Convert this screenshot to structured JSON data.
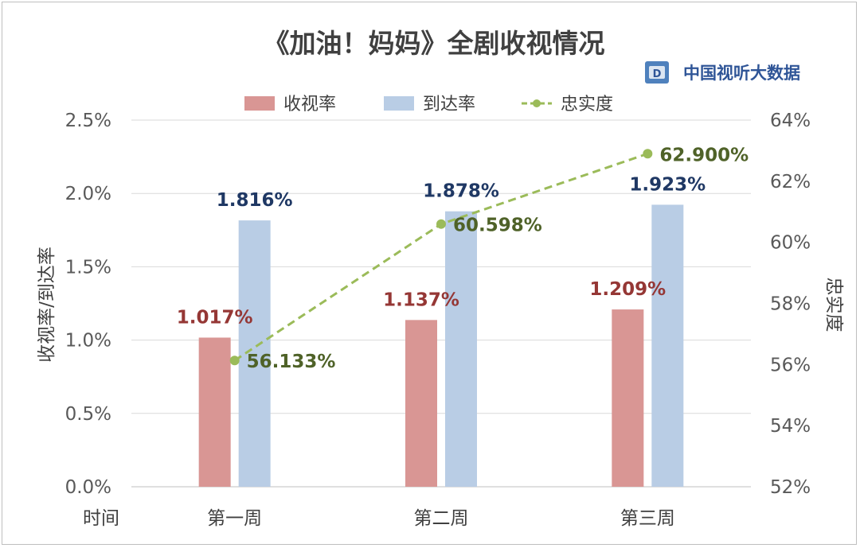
{
  "chart_data": {
    "type": "bar",
    "title": "《加油！妈妈》全剧收视情况",
    "brand": "中国视听大数据",
    "categories": [
      "第一周",
      "第二周",
      "第三周"
    ],
    "x_axis_label": "时间",
    "y_left_label": "收视率/到达率",
    "y_right_label": "忠实度",
    "y_left_ticks": [
      "0.0%",
      "0.5%",
      "1.0%",
      "1.5%",
      "2.0%",
      "2.5%"
    ],
    "y_right_ticks": [
      "52%",
      "54%",
      "56%",
      "58%",
      "60%",
      "62%",
      "64%"
    ],
    "y_left_range": [
      0,
      2.5
    ],
    "y_right_range": [
      52,
      64
    ],
    "legend_position": "top",
    "grid": true,
    "series": [
      {
        "name": "收视率",
        "type": "bar",
        "axis": "left",
        "color": "#d99694",
        "values": [
          1.017,
          1.137,
          1.209
        ],
        "labels": [
          "1.017%",
          "1.137%",
          "1.209%"
        ],
        "label_color": "#953735"
      },
      {
        "name": "到达率",
        "type": "bar",
        "axis": "left",
        "color": "#b9cde5",
        "values": [
          1.816,
          1.878,
          1.923
        ],
        "labels": [
          "1.816%",
          "1.878%",
          "1.923%"
        ],
        "label_color": "#1f3864"
      },
      {
        "name": "忠实度",
        "type": "line",
        "axis": "right",
        "color": "#9bbb59",
        "values": [
          56.133,
          60.598,
          62.9
        ],
        "labels": [
          "56.133%",
          "60.598%",
          "62.900%"
        ],
        "label_color": "#4f6228"
      }
    ]
  }
}
